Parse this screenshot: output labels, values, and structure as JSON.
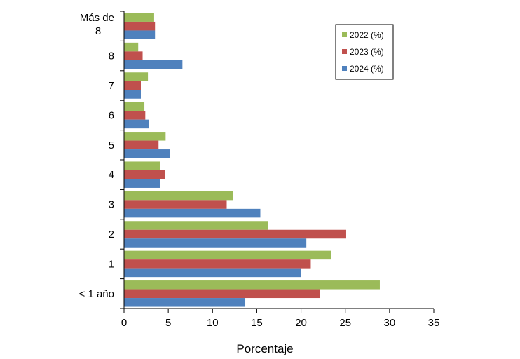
{
  "chart_data": {
    "type": "bar",
    "orientation": "horizontal",
    "title": "",
    "xlabel": "Porcentaje",
    "ylabel": "",
    "xlim": [
      0,
      35
    ],
    "xticks": [
      0,
      5,
      10,
      15,
      20,
      25,
      30,
      35
    ],
    "grid": false,
    "legend_position": "top-right",
    "categories": [
      "Más de 8",
      "8",
      "7",
      "6",
      "5",
      "4",
      "3",
      "2",
      "1",
      "< 1 año"
    ],
    "series": [
      {
        "name": "2022 (%)",
        "color": "#9BBB59",
        "values": [
          3.4,
          1.6,
          2.7,
          2.3,
          4.7,
          4.1,
          12.3,
          16.3,
          23.4,
          28.9
        ]
      },
      {
        "name": "2023 (%)",
        "color": "#C0504D",
        "values": [
          3.5,
          2.1,
          1.9,
          2.4,
          3.9,
          4.6,
          11.6,
          25.1,
          21.1,
          22.1
        ]
      },
      {
        "name": "2024 (%)",
        "color": "#4F81BD",
        "values": [
          3.5,
          6.6,
          1.9,
          2.8,
          5.2,
          4.1,
          15.4,
          20.6,
          20.0,
          13.7
        ]
      }
    ]
  }
}
